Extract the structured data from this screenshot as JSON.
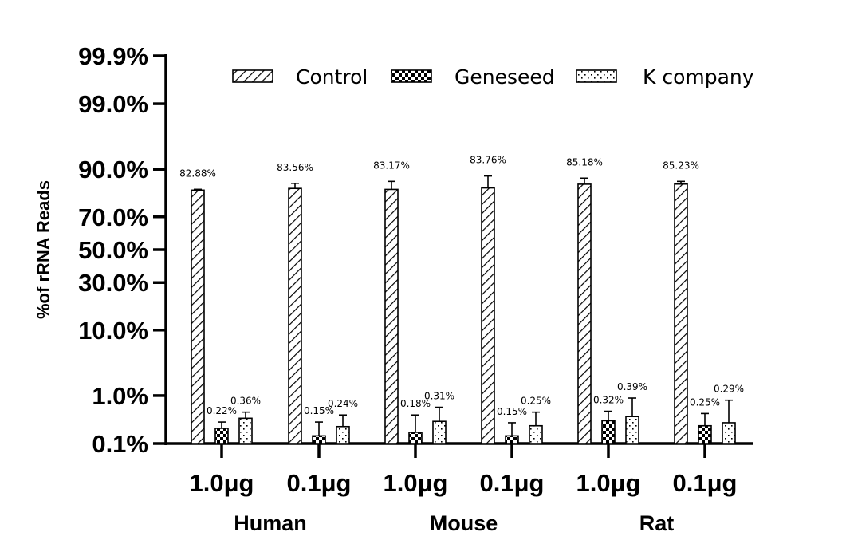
{
  "chart_data": {
    "type": "bar",
    "scale": "probit",
    "ylabel": "%of rRNA Reads",
    "yticks": [
      {
        "value": 0.1,
        "label": "0.1%"
      },
      {
        "value": 1.0,
        "label": "1.0%"
      },
      {
        "value": 10.0,
        "label": "10.0%"
      },
      {
        "value": 30.0,
        "label": "30.0%"
      },
      {
        "value": 50.0,
        "label": "50.0%"
      },
      {
        "value": 70.0,
        "label": "70.0%"
      },
      {
        "value": 90.0,
        "label": "90.0%"
      },
      {
        "value": 99.0,
        "label": "99.0%"
      },
      {
        "value": 99.9,
        "label": "99.9%"
      }
    ],
    "ylim": [
      0.1,
      99.9
    ],
    "categories": [
      "1.0μg",
      "0.1μg",
      "1.0μg",
      "0.1μg",
      "1.0μg",
      "0.1μg"
    ],
    "groups": [
      {
        "label": "Human",
        "categories": [
          0,
          1
        ]
      },
      {
        "label": "Mouse",
        "categories": [
          2,
          3
        ]
      },
      {
        "label": "Rat",
        "categories": [
          4,
          5
        ]
      }
    ],
    "legend_position": "top",
    "series": [
      {
        "name": "Control",
        "pattern": "diagonal-hatch",
        "values": [
          82.88,
          83.56,
          83.17,
          83.76,
          85.18,
          85.23
        ],
        "labels": [
          "82.88%",
          "83.56%",
          "83.17%",
          "83.76%",
          "85.18%",
          "85.23%"
        ],
        "error_upper": [
          83.2,
          85.5,
          86.2,
          88.0,
          87.3,
          86.2
        ]
      },
      {
        "name": "Geneseed",
        "pattern": "checkerboard",
        "values": [
          0.22,
          0.15,
          0.18,
          0.15,
          0.32,
          0.25
        ],
        "labels": [
          "0.22%",
          "0.15%",
          "0.18%",
          "0.15%",
          "0.32%",
          "0.25%"
        ],
        "error_upper": [
          0.3,
          0.3,
          0.42,
          0.29,
          0.5,
          0.45
        ]
      },
      {
        "name": "K company",
        "pattern": "dotted",
        "values": [
          0.36,
          0.24,
          0.31,
          0.25,
          0.39,
          0.29
        ],
        "labels": [
          "0.36%",
          "0.24%",
          "0.31%",
          "0.25%",
          "0.39%",
          "0.29%"
        ],
        "error_upper": [
          0.48,
          0.42,
          0.6,
          0.48,
          0.9,
          0.82
        ]
      }
    ]
  }
}
